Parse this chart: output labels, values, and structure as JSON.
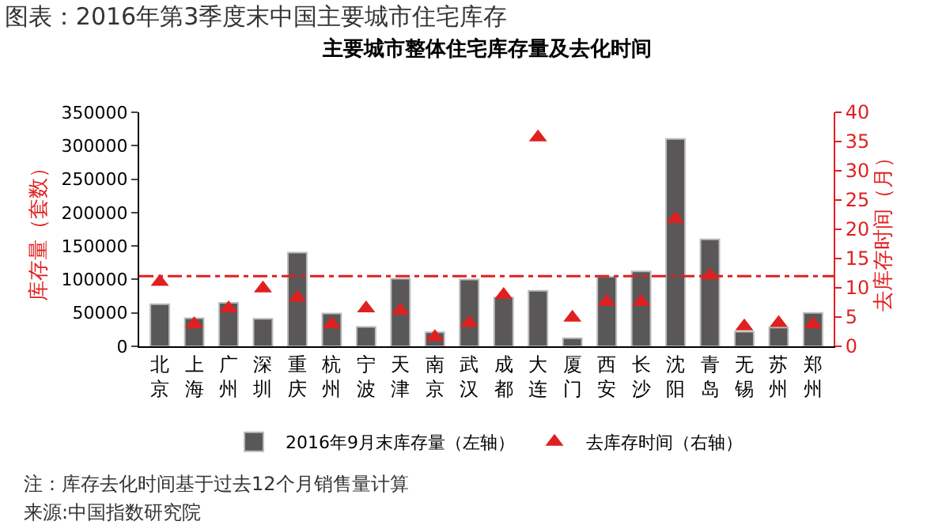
{
  "chart_data": {
    "type": "bar",
    "title": "图表：2016年第3季度末中国主要城市住宅库存",
    "subtitle": "主要城市整体住宅库存量及去化时间",
    "categories": [
      "北京",
      "上海",
      "广州",
      "深圳",
      "重庆",
      "杭州",
      "宁波",
      "天津",
      "南京",
      "武汉",
      "成都",
      "大连",
      "厦门",
      "西安",
      "长沙",
      "沈阳",
      "青岛",
      "无锡",
      "苏州",
      "郑州"
    ],
    "series": [
      {
        "name": "2016年9月末库存量（左轴）",
        "color": "#595757",
        "values": [
          63000,
          42000,
          65000,
          41000,
          140000,
          49000,
          29000,
          101000,
          21000,
          100000,
          73000,
          83000,
          12000,
          104000,
          112000,
          310000,
          160000,
          22000,
          28000,
          50000
        ]
      },
      {
        "name": "去库存时间（右轴）",
        "type": "scatter",
        "axis": "y2",
        "marker": "triangle",
        "color": "#e02020",
        "values": [
          11.0,
          3.8,
          6.5,
          9.9,
          8.3,
          3.8,
          6.5,
          6.1,
          1.6,
          4.0,
          8.8,
          35.7,
          4.9,
          7.6,
          7.6,
          21.8,
          12.1,
          3.4,
          4.0,
          3.8
        ]
      }
    ],
    "ylabel": "库存量（套数）",
    "y2label": "去库存时间（月）",
    "ylim": [
      0,
      350000
    ],
    "yticks": [
      0,
      50000,
      100000,
      150000,
      200000,
      250000,
      300000,
      350000
    ],
    "y2lim": [
      0,
      40
    ],
    "y2ticks": [
      0,
      5,
      10,
      15,
      20,
      25,
      30,
      35,
      40
    ],
    "ref_lines": [
      {
        "axis": "y2",
        "value": 12,
        "label": null,
        "color": "#e02020",
        "line_style": "dashed"
      }
    ],
    "legend": "bottom",
    "grid": false,
    "annotations": [
      "注：库存去化时间基于过去12个月销售量计算",
      "来源:中国指数研究院"
    ]
  }
}
